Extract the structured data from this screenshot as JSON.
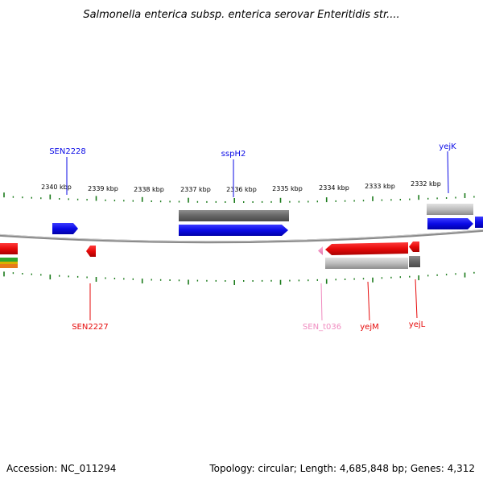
{
  "title": "Salmonella enterica subsp. enterica serovar Enteritidis str....",
  "footer": {
    "accession": "Accession: NC_011294",
    "summary": "Topology: circular; Length: 4,685,848 bp; Genes: 4,312"
  },
  "axis": {
    "tick_labels": [
      "2340 kbp",
      "2339 kbp",
      "2338 kbp",
      "2337 kbp",
      "2336 kbp",
      "2335 kbp",
      "2334 kbp",
      "2333 kbp",
      "2332 kbp"
    ],
    "tick_color": "#1a7a1a"
  },
  "gene_labels": {
    "sen2228": "SEN2228",
    "ssph2": "sspH2",
    "yejk": "yejK",
    "sen2227": "SEN2227",
    "sen_t036": "SEN_t036",
    "yejm": "yejM",
    "yejl": "yejL"
  },
  "colors": {
    "forward_cds": "#0a0ae6",
    "reverse_cds": "#e60a0a",
    "trna": "#f08cc0",
    "gene_block": "#6e6e6e",
    "backbone": "#8a8a8a"
  }
}
